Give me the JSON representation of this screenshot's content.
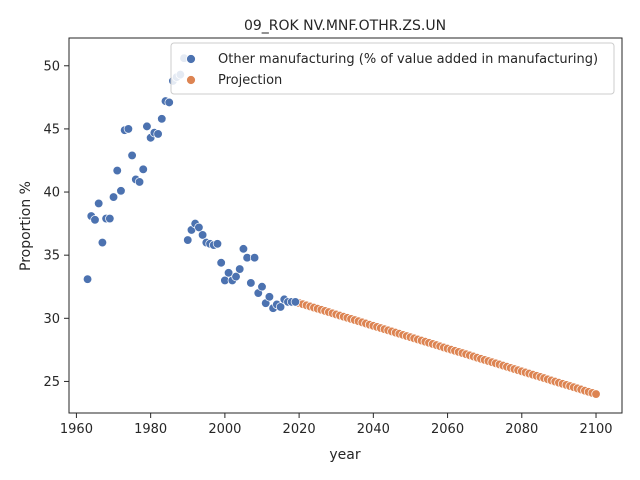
{
  "chart_data": {
    "type": "scatter",
    "title": "09_ROK NV.MNF.OTHR.ZS.UN",
    "xlabel": "year",
    "ylabel": "Proportion %",
    "xlim": [
      1958,
      2107
    ],
    "ylim": [
      22.5,
      52.2
    ],
    "xticks": [
      1960,
      1980,
      2000,
      2020,
      2040,
      2060,
      2080,
      2100
    ],
    "yticks": [
      25,
      30,
      35,
      40,
      45,
      50
    ],
    "grid": false,
    "legend_position": "top-right",
    "series": [
      {
        "name": "Other manufacturing (% of value added in manufacturing)",
        "color": "#4c72b0",
        "x": [
          1963,
          1964,
          1965,
          1966,
          1967,
          1968,
          1969,
          1970,
          1971,
          1972,
          1973,
          1974,
          1975,
          1976,
          1977,
          1978,
          1979,
          1980,
          1981,
          1982,
          1983,
          1984,
          1985,
          1986,
          1987,
          1988,
          1989,
          1990,
          1991,
          1992,
          1993,
          1994,
          1995,
          1996,
          1997,
          1998,
          1999,
          2000,
          2001,
          2002,
          2003,
          2004,
          2005,
          2006,
          2007,
          2008,
          2009,
          2010,
          2011,
          2012,
          2013,
          2014,
          2015,
          2016,
          2017,
          2018,
          2019
        ],
        "y": [
          33.1,
          38.1,
          37.8,
          39.1,
          36.0,
          37.9,
          37.9,
          39.6,
          41.7,
          40.1,
          44.9,
          45.0,
          42.9,
          41.0,
          40.8,
          41.8,
          45.2,
          44.3,
          44.7,
          44.6,
          45.8,
          47.2,
          47.1,
          48.8,
          49.1,
          49.3,
          50.6,
          36.2,
          37.0,
          37.5,
          37.2,
          36.6,
          36.0,
          35.9,
          35.8,
          35.9,
          34.4,
          33.0,
          33.6,
          33.0,
          33.3,
          33.9,
          35.5,
          34.8,
          32.8,
          34.8,
          32.0,
          32.5,
          31.2,
          31.7,
          30.8,
          31.1,
          30.9,
          31.5,
          31.3,
          31.3,
          31.3
        ]
      },
      {
        "name": "Projection",
        "color": "#dd8452",
        "x_start": 2019,
        "x_end": 2100,
        "y_start": 31.3,
        "y_end": 24.0
      }
    ]
  }
}
